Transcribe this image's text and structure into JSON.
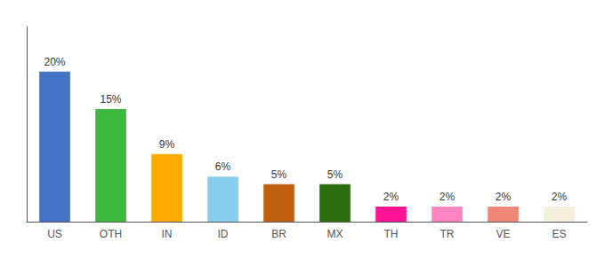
{
  "chart_data": {
    "type": "bar",
    "categories": [
      "US",
      "OTH",
      "IN",
      "ID",
      "BR",
      "MX",
      "TH",
      "TR",
      "VE",
      "ES"
    ],
    "values": [
      20,
      15,
      9,
      6,
      5,
      5,
      2,
      2,
      2,
      2
    ],
    "value_labels": [
      "20%",
      "15%",
      "9%",
      "6%",
      "5%",
      "5%",
      "2%",
      "2%",
      "2%",
      "2%"
    ],
    "colors": [
      "#4472c4",
      "#3dba3d",
      "#ffaa00",
      "#87ceeb",
      "#c06010",
      "#2d6e10",
      "#ff1493",
      "#ff85c0",
      "#f08878",
      "#f5f0dc"
    ],
    "ylim": [
      0,
      26
    ],
    "data_labels": true,
    "tick_labels": "x",
    "grid": false
  }
}
